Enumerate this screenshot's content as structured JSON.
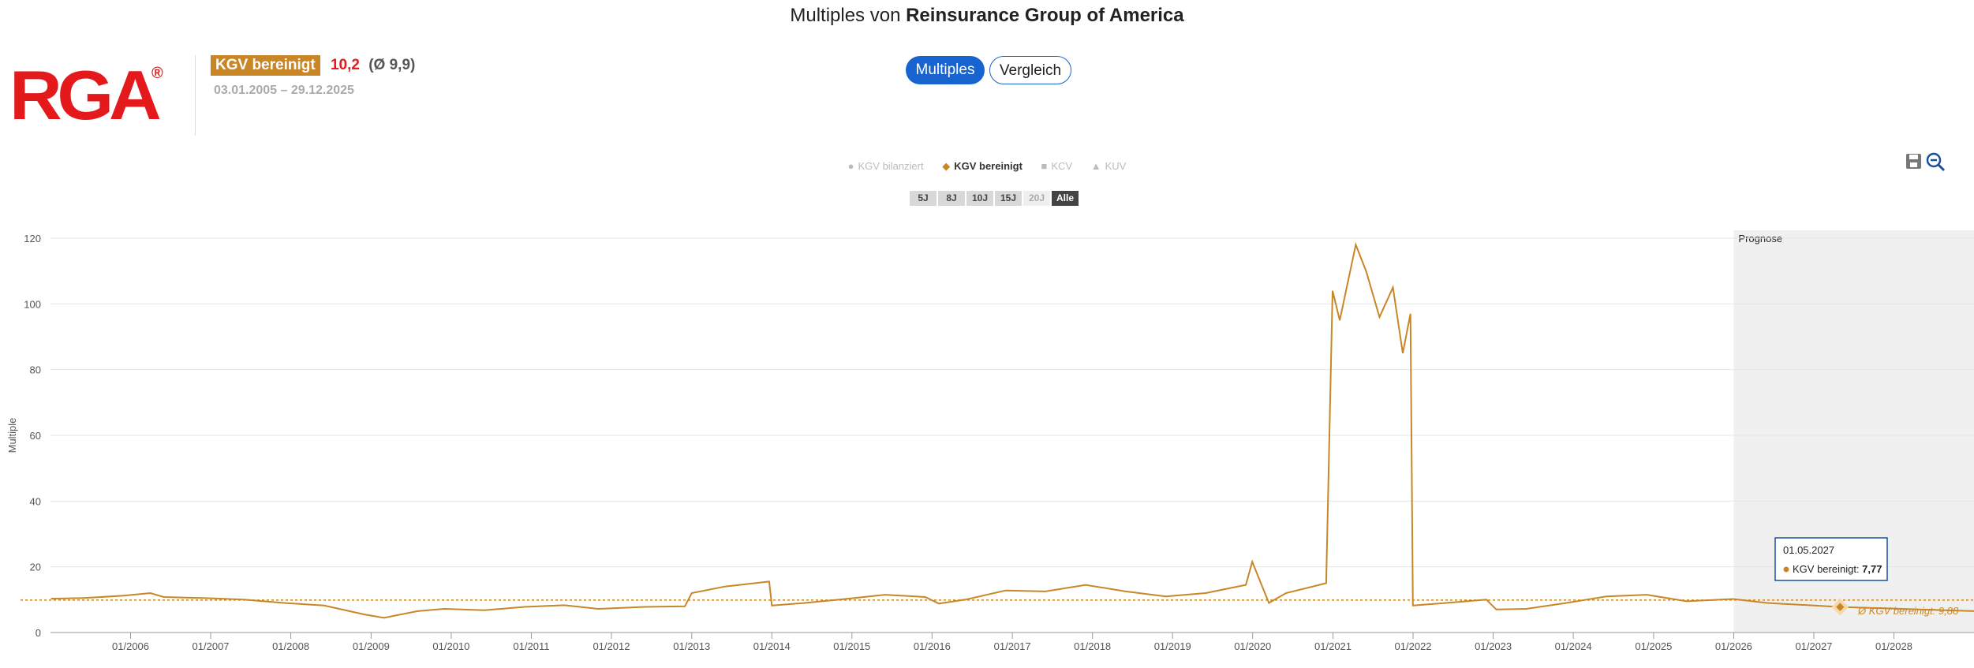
{
  "header": {
    "title_prefix": "Multiples von",
    "title_company": "Reinsurance Group of America"
  },
  "logo": {
    "text": "RGA",
    "registered": "®"
  },
  "metric": {
    "label": "KGV bereinigt",
    "value": "10,2",
    "average": "(Ø 9,9)",
    "date_range": "03.01.2005 – 29.12.2025"
  },
  "toggle": {
    "multiples_label": "Multiples",
    "vergleich_label": "Vergleich"
  },
  "legend": [
    {
      "label": "KGV bilanziert",
      "active": false,
      "symbol": "●"
    },
    {
      "label": "KGV bereinigt",
      "active": true,
      "symbol": "◆"
    },
    {
      "label": "KCV",
      "active": false,
      "symbol": "■"
    },
    {
      "label": "KUV",
      "active": false,
      "symbol": "▲"
    }
  ],
  "ranges": [
    {
      "label": "5J",
      "state": "normal"
    },
    {
      "label": "8J",
      "state": "normal"
    },
    {
      "label": "10J",
      "state": "normal"
    },
    {
      "label": "15J",
      "state": "normal"
    },
    {
      "label": "20J",
      "state": "disabled"
    },
    {
      "label": "Alle",
      "state": "selected"
    }
  ],
  "tools": {
    "save_icon": "save-icon",
    "zoom_icon": "zoom-out-icon"
  },
  "colors": {
    "series": "#c98626",
    "forecast_bg": "#f0f0f0",
    "tooltip_border": "#1a4fa0"
  },
  "chart_data": {
    "type": "line",
    "ylabel": "Multiple",
    "ylim": [
      0,
      120
    ],
    "yticks": [
      0,
      20,
      40,
      60,
      80,
      100,
      120
    ],
    "xlim": [
      "2005-01-01",
      "2028-12-31"
    ],
    "xticks": [
      "01/2006",
      "01/2007",
      "01/2008",
      "01/2009",
      "01/2010",
      "01/2011",
      "01/2012",
      "01/2013",
      "01/2014",
      "01/2015",
      "01/2016",
      "01/2017",
      "01/2018",
      "01/2019",
      "01/2020",
      "01/2021",
      "01/2022",
      "01/2023",
      "01/2024",
      "01/2025",
      "01/2026",
      "01/2027",
      "01/2028"
    ],
    "grid": true,
    "forecast": {
      "label": "Prognose",
      "start": "2026-01-01",
      "end": "2028-12-31"
    },
    "average_line": {
      "value": 9.88,
      "label": "Ø KGV bereinigt: 9,88"
    },
    "tooltip": {
      "date": "01.05.2027",
      "series": "KGV bereinigt",
      "value": "7,77"
    },
    "series": [
      {
        "name": "KGV bereinigt",
        "points": [
          [
            "2005-01-03",
            10.3
          ],
          [
            "2005-06-01",
            10.5
          ],
          [
            "2005-12-01",
            11.2
          ],
          [
            "2006-04-01",
            12.0
          ],
          [
            "2006-06-01",
            10.8
          ],
          [
            "2006-12-01",
            10.5
          ],
          [
            "2007-06-01",
            10.0
          ],
          [
            "2007-12-01",
            9.0
          ],
          [
            "2008-06-01",
            8.2
          ],
          [
            "2008-12-01",
            5.5
          ],
          [
            "2009-03-01",
            4.5
          ],
          [
            "2009-08-01",
            6.5
          ],
          [
            "2009-12-01",
            7.2
          ],
          [
            "2010-06-01",
            6.8
          ],
          [
            "2010-12-01",
            7.8
          ],
          [
            "2011-06-01",
            8.3
          ],
          [
            "2011-11-01",
            7.2
          ],
          [
            "2012-06-01",
            7.8
          ],
          [
            "2012-12-01",
            8.0
          ],
          [
            "2013-01-01",
            12.0
          ],
          [
            "2013-06-01",
            14.0
          ],
          [
            "2013-12-20",
            15.5
          ],
          [
            "2014-01-01",
            8.2
          ],
          [
            "2014-06-01",
            9.0
          ],
          [
            "2014-12-01",
            10.2
          ],
          [
            "2015-06-01",
            11.5
          ],
          [
            "2015-12-01",
            10.8
          ],
          [
            "2016-02-01",
            8.8
          ],
          [
            "2016-06-01",
            10.0
          ],
          [
            "2016-12-01",
            12.8
          ],
          [
            "2017-06-01",
            12.5
          ],
          [
            "2017-12-01",
            14.5
          ],
          [
            "2018-06-01",
            12.5
          ],
          [
            "2018-12-01",
            11.0
          ],
          [
            "2019-06-01",
            12.0
          ],
          [
            "2019-12-01",
            14.5
          ],
          [
            "2019-12-30",
            21.5
          ],
          [
            "2020-03-15",
            9.0
          ],
          [
            "2020-06-01",
            12.0
          ],
          [
            "2020-12-01",
            15.0
          ],
          [
            "2020-12-30",
            104.0
          ],
          [
            "2021-02-01",
            95.0
          ],
          [
            "2021-04-15",
            118.0
          ],
          [
            "2021-06-01",
            110.0
          ],
          [
            "2021-08-01",
            96.0
          ],
          [
            "2021-10-01",
            105.0
          ],
          [
            "2021-11-15",
            85.0
          ],
          [
            "2021-12-20",
            97.0
          ],
          [
            "2021-12-31",
            8.2
          ],
          [
            "2022-06-01",
            9.0
          ],
          [
            "2022-12-01",
            10.0
          ],
          [
            "2023-01-15",
            7.0
          ],
          [
            "2023-06-01",
            7.2
          ],
          [
            "2023-12-01",
            9.0
          ],
          [
            "2024-06-01",
            11.0
          ],
          [
            "2024-12-01",
            11.5
          ],
          [
            "2025-06-01",
            9.5
          ],
          [
            "2025-12-29",
            10.2
          ],
          [
            "2026-06-01",
            9.0
          ],
          [
            "2027-05-01",
            7.77
          ],
          [
            "2028-12-31",
            6.5
          ]
        ]
      }
    ]
  }
}
